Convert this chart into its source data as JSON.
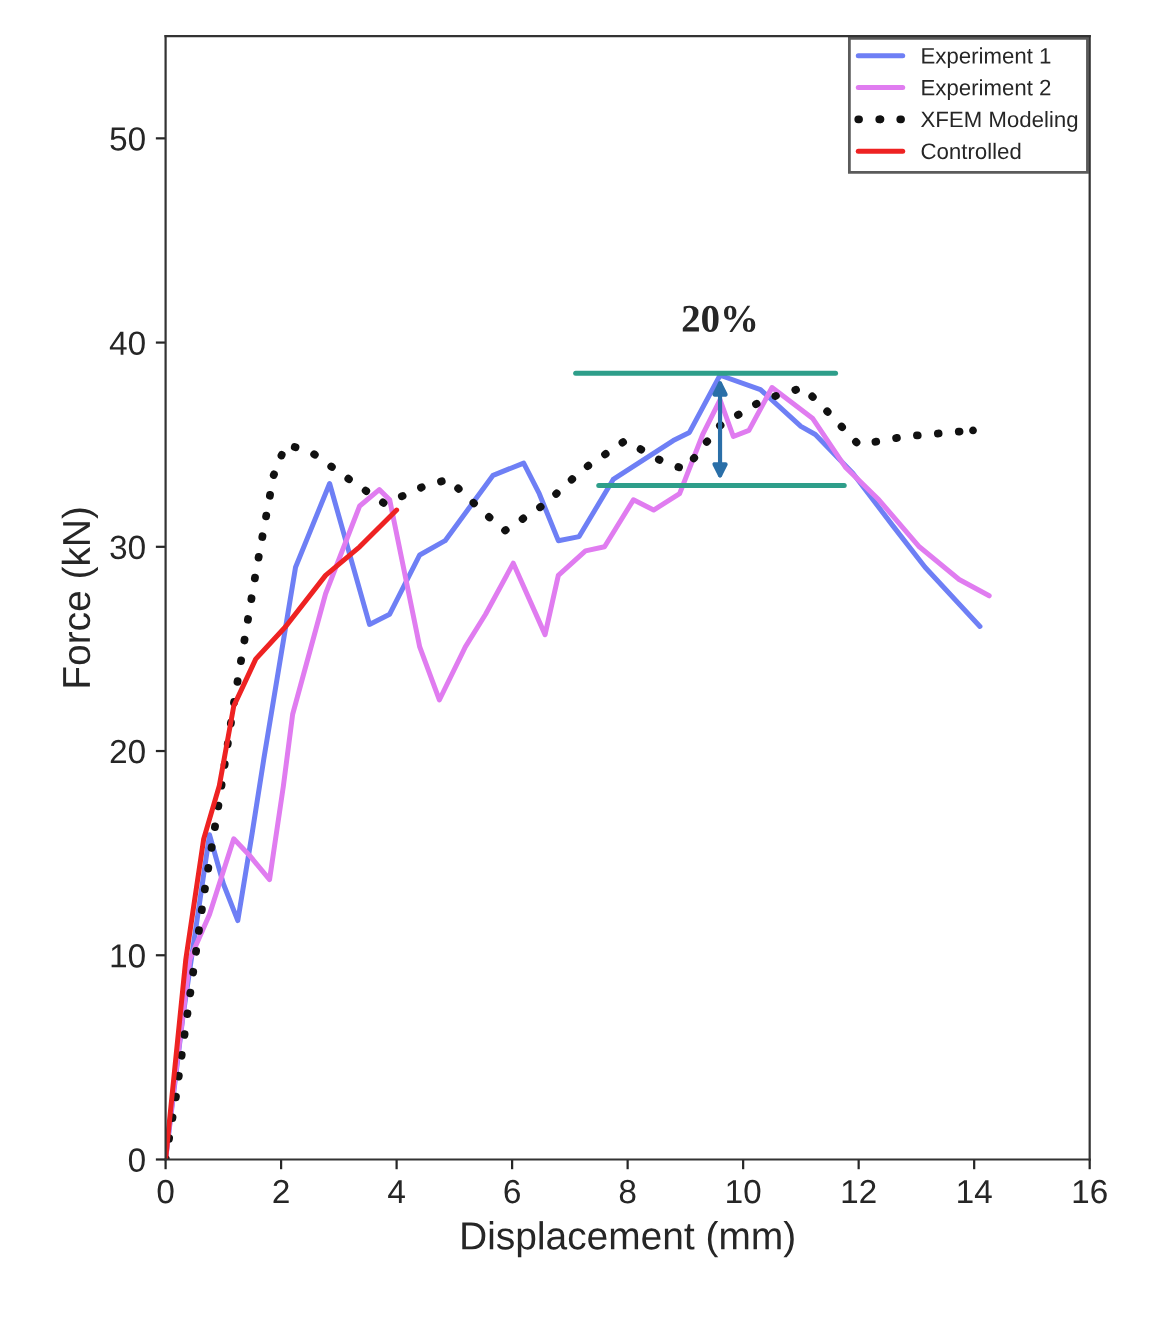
{
  "chart_data": {
    "type": "line",
    "xlabel": "Displacement (mm)",
    "ylabel": "Force (kN)",
    "xlim": [
      0,
      16
    ],
    "ylim": [
      0,
      55
    ],
    "xticks": [
      0,
      2,
      4,
      6,
      8,
      10,
      12,
      14,
      16
    ],
    "yticks": [
      0,
      10,
      20,
      30,
      40,
      50
    ],
    "grid": false,
    "legend": "top right",
    "series": [
      {
        "name": "Experiment 1",
        "color": "#6e7ff5",
        "line_style": "solid",
        "x": [
          0,
          0.3,
          0.76,
          1.0,
          1.25,
          1.5,
          1.7,
          2.25,
          2.84,
          3.53,
          3.88,
          4.4,
          4.84,
          5.67,
          6.2,
          6.47,
          6.8,
          7.16,
          7.75,
          8.79,
          9.07,
          9.6,
          10.3,
          11.0,
          11.25,
          11.9,
          12.6,
          13.15,
          14.1
        ],
        "values": [
          0,
          7,
          15.9,
          13.5,
          11.7,
          16,
          19.6,
          29,
          33.1,
          26.2,
          26.7,
          29.6,
          30.3,
          33.5,
          34.1,
          32.6,
          30.3,
          30.5,
          33.3,
          35.2,
          35.6,
          38.4,
          37.7,
          35.9,
          35.5,
          33.6,
          31.0,
          29.0,
          26.1
        ]
      },
      {
        "name": "Experiment 2",
        "color": "#e07cf0",
        "line_style": "solid",
        "x": [
          0,
          0.13,
          0.42,
          0.76,
          1.18,
          1.45,
          1.8,
          2.04,
          2.2,
          2.77,
          3.36,
          3.7,
          3.88,
          4.4,
          4.74,
          5.19,
          5.54,
          6.02,
          6.57,
          6.8,
          7.27,
          7.6,
          8.1,
          8.45,
          8.9,
          9.3,
          9.6,
          9.83,
          10.1,
          10.5,
          11.2,
          11.77,
          12.35,
          13.05,
          13.74,
          14.26
        ],
        "values": [
          0,
          3.2,
          9.8,
          12.0,
          15.7,
          14.9,
          13.7,
          18.3,
          21.8,
          27.7,
          32.0,
          32.8,
          32.3,
          25.1,
          22.5,
          25.1,
          26.7,
          29.2,
          25.7,
          28.6,
          29.8,
          30.0,
          32.3,
          31.8,
          32.6,
          35.5,
          37.2,
          35.4,
          35.7,
          37.8,
          36.3,
          33.9,
          32.3,
          30.0,
          28.4,
          27.6
        ]
      },
      {
        "name": "XFEM Modeling",
        "color": "#111111",
        "line_style": "dotted",
        "x": [
          0,
          0.18,
          0.42,
          0.66,
          0.93,
          1.18,
          1.56,
          1.87,
          2.08,
          2.49,
          3.18,
          3.8,
          4.5,
          4.9,
          5.54,
          5.88,
          6.57,
          7.23,
          7.96,
          8.65,
          9.0,
          9.58,
          10.35,
          11.04,
          11.4,
          12.0,
          12.8,
          13.98
        ],
        "values": [
          0,
          3.1,
          8.0,
          12.9,
          17.6,
          22.3,
          28.7,
          33.5,
          35.0,
          34.7,
          33.3,
          32.1,
          33.0,
          33.3,
          31.6,
          30.8,
          32.1,
          33.8,
          35.2,
          34.1,
          33.8,
          35.9,
          37.2,
          37.8,
          36.8,
          35.0,
          35.4,
          35.7
        ]
      },
      {
        "name": "Controlled",
        "color": "#ee2222",
        "line_style": "solid",
        "x": [
          0,
          0.35,
          0.66,
          0.93,
          1.18,
          1.56,
          2.08,
          2.77,
          3.36,
          4.0
        ],
        "values": [
          0,
          9.8,
          15.7,
          18.3,
          22.2,
          24.5,
          26.1,
          28.6,
          30.0,
          31.8
        ]
      },
      {
        "color": "#2e9e8a",
        "line_style": "solid",
        "x": [
          7.1,
          11.6
        ],
        "values": [
          38.5,
          38.5
        ]
      },
      {
        "color": "#2e9e8a",
        "line_style": "solid",
        "x": [
          7.5,
          11.75
        ],
        "values": [
          33.0,
          33.0
        ]
      }
    ],
    "annotations": [
      "20%"
    ]
  }
}
